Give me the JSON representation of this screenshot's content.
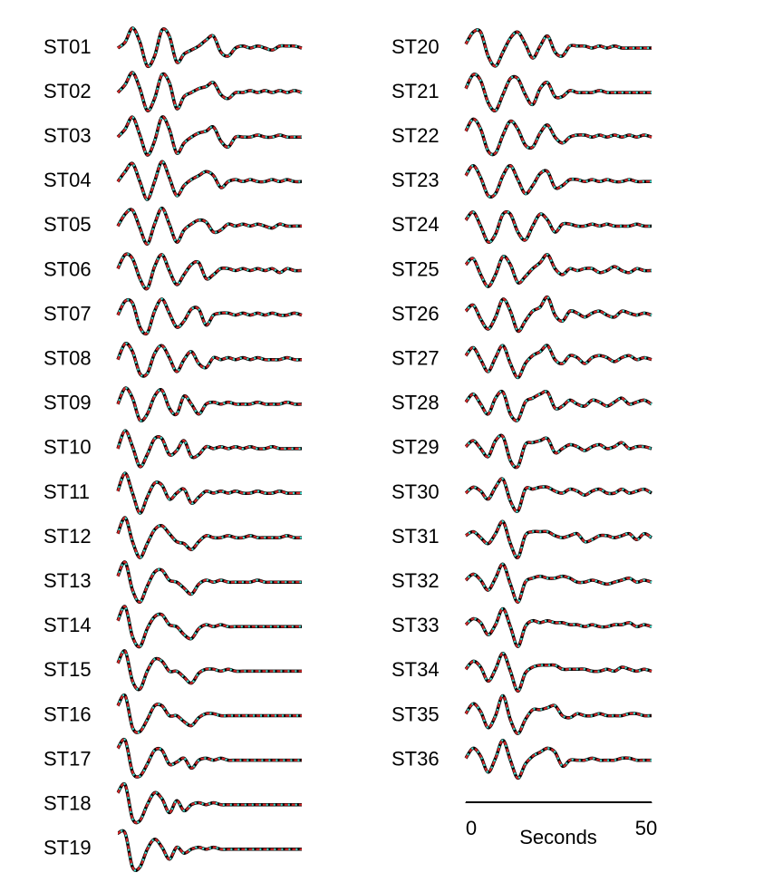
{
  "chart_data": {
    "type": "line",
    "x": [
      0,
      2,
      4,
      6,
      8,
      10,
      12,
      14,
      16,
      18,
      20,
      22,
      24,
      26,
      28,
      30,
      32,
      34,
      36,
      38,
      40,
      42,
      44,
      46,
      48,
      50
    ],
    "xlim": [
      0,
      50
    ],
    "xticks": [
      0,
      50
    ],
    "xlabel": "Seconds",
    "ylim": [
      -1,
      1
    ],
    "line_colors": [
      "#000000",
      "#d62728",
      "#40e0d0"
    ],
    "series": [
      {
        "name": "ST01",
        "values": [
          0,
          0.3,
          1,
          0.3,
          -0.9,
          -0.4,
          0.9,
          0.6,
          -0.7,
          -0.3,
          -0.1,
          0.1,
          0.4,
          0.6,
          -0.2,
          -0.4,
          0,
          0.1,
          0,
          0.1,
          0,
          -0.1,
          0.1,
          0.1,
          0.1,
          0
        ]
      },
      {
        "name": "ST02",
        "values": [
          0,
          0.4,
          1,
          0.2,
          -0.9,
          -0.3,
          0.9,
          0.5,
          -0.8,
          -0.2,
          0,
          0.2,
          0.3,
          0.5,
          -0.1,
          -0.3,
          0,
          0,
          0.1,
          0,
          0.1,
          0,
          0.1,
          0,
          0.1,
          0
        ]
      },
      {
        "name": "ST03",
        "values": [
          0,
          0.4,
          1,
          0.1,
          -0.9,
          -0.2,
          1,
          0.4,
          -0.8,
          -0.3,
          0,
          0.2,
          0.3,
          0.5,
          -0.2,
          -0.5,
          0,
          0,
          0,
          0.1,
          0,
          0,
          0.1,
          0,
          0,
          0
        ]
      },
      {
        "name": "ST04",
        "values": [
          0,
          0.5,
          0.9,
          0,
          -0.9,
          0,
          1,
          0.2,
          -0.7,
          -0.2,
          0.1,
          0.3,
          0.5,
          0.3,
          -0.3,
          0,
          0.1,
          0,
          0.1,
          0,
          0,
          0.1,
          0,
          0.1,
          0,
          0
        ]
      },
      {
        "name": "ST05",
        "values": [
          0,
          0.6,
          0.8,
          -0.1,
          -0.9,
          0.1,
          0.9,
          0.1,
          -0.8,
          -0.2,
          0.1,
          0.3,
          0.2,
          -0.3,
          -0.2,
          0.1,
          0,
          0.1,
          0,
          0.1,
          0,
          -0.1,
          0.1,
          0,
          0,
          0
        ]
      },
      {
        "name": "ST06",
        "values": [
          0.1,
          0.8,
          0.6,
          -0.4,
          -0.9,
          0.2,
          0.8,
          0,
          -0.7,
          -0.2,
          0.3,
          0.4,
          -0.4,
          -0.2,
          0.1,
          0.1,
          0,
          0.1,
          0,
          0.1,
          0,
          0.1,
          -0.1,
          0.1,
          0,
          0
        ]
      },
      {
        "name": "ST07",
        "values": [
          0,
          0.7,
          0.6,
          -0.6,
          -0.9,
          0.2,
          0.8,
          0.1,
          -0.6,
          -0.3,
          0.3,
          0.3,
          -0.5,
          0,
          0.1,
          0.1,
          0,
          0.1,
          0,
          0.1,
          0,
          0.1,
          0,
          0,
          0.1,
          0
        ]
      },
      {
        "name": "ST08",
        "values": [
          0,
          0.8,
          0.4,
          -0.7,
          -0.7,
          0.3,
          0.7,
          0.1,
          -0.6,
          0,
          0.4,
          -0.2,
          -0.4,
          0.1,
          0,
          0.1,
          0,
          0.1,
          0,
          0.1,
          0,
          0,
          0,
          0.1,
          0,
          0
        ]
      },
      {
        "name": "ST09",
        "values": [
          0,
          0.8,
          0.3,
          -0.8,
          -0.5,
          0.4,
          0.7,
          -0.2,
          -0.5,
          0.4,
          0,
          -0.5,
          0,
          0.1,
          0,
          0.1,
          0,
          0,
          0,
          0.1,
          0,
          0,
          0,
          0.1,
          0,
          0
        ]
      },
      {
        "name": "ST10",
        "values": [
          0,
          0.9,
          0.1,
          -0.9,
          -0.3,
          0.5,
          0.5,
          -0.3,
          -0.1,
          0.4,
          -0.4,
          -0.3,
          0.1,
          0,
          0.1,
          0,
          0.1,
          0,
          0.1,
          0,
          0,
          0.1,
          0,
          0,
          0,
          0
        ]
      },
      {
        "name": "ST11",
        "values": [
          0.1,
          1,
          0,
          -1,
          -0.2,
          0.5,
          0.4,
          -0.3,
          0,
          0.2,
          -0.5,
          -0.2,
          0.1,
          0,
          0.1,
          0,
          0.1,
          0,
          0,
          0.1,
          0,
          0,
          0.1,
          0,
          0,
          0
        ]
      },
      {
        "name": "ST12",
        "values": [
          0.2,
          1,
          -0.2,
          -1,
          -0.3,
          0.4,
          0.6,
          0.2,
          -0.2,
          -0.3,
          -0.6,
          -0.2,
          0.1,
          0,
          0,
          0.1,
          0,
          0,
          0.1,
          0,
          0,
          0,
          0,
          0.1,
          0,
          0
        ]
      },
      {
        "name": "ST13",
        "values": [
          0.3,
          1,
          -0.4,
          -1,
          -0.2,
          0.5,
          0.6,
          0.1,
          0,
          -0.3,
          -0.6,
          -0.1,
          0.1,
          0,
          0.1,
          0,
          0,
          0,
          0,
          0.1,
          0,
          0,
          0,
          0,
          0,
          0
        ]
      },
      {
        "name": "ST14",
        "values": [
          0.3,
          1,
          -0.5,
          -1,
          -0.1,
          0.5,
          0.6,
          0.1,
          0,
          -0.4,
          -0.6,
          -0.1,
          0.1,
          0,
          0.1,
          0,
          0,
          0,
          0,
          0,
          0,
          0,
          0,
          0,
          0,
          0
        ]
      },
      {
        "name": "ST15",
        "values": [
          0.4,
          1,
          -0.5,
          -0.9,
          0,
          0.6,
          0.5,
          0,
          0,
          -0.3,
          -0.6,
          -0.1,
          0.1,
          0.1,
          0,
          0.1,
          0,
          0,
          0,
          0,
          0,
          0,
          0,
          0,
          0,
          0
        ]
      },
      {
        "name": "ST16",
        "values": [
          0.5,
          1,
          -0.6,
          -0.8,
          -0.2,
          0.5,
          0.5,
          0,
          0,
          -0.3,
          -0.5,
          -0.1,
          0.1,
          0.1,
          0,
          0,
          0,
          0,
          0,
          0,
          0,
          0,
          0,
          0,
          0,
          0
        ]
      },
      {
        "name": "ST17",
        "values": [
          0.6,
          1,
          -0.6,
          -0.8,
          -0.2,
          0.5,
          0.5,
          -0.2,
          -0.1,
          0.1,
          -0.4,
          0,
          0.1,
          0,
          0.1,
          0,
          0,
          0,
          0,
          0,
          0,
          0,
          0,
          0,
          0,
          0
        ]
      },
      {
        "name": "ST18",
        "values": [
          0.6,
          1,
          -0.7,
          -0.8,
          0,
          0.6,
          0.3,
          -0.4,
          0.2,
          -0.3,
          0,
          0.1,
          0,
          0.1,
          0,
          0,
          0,
          0,
          0,
          0,
          0,
          0,
          0,
          0,
          0,
          0
        ]
      },
      {
        "name": "ST19",
        "values": [
          0.8,
          0.8,
          -0.9,
          -0.9,
          0,
          0.5,
          0.1,
          -0.5,
          0.1,
          -0.2,
          0,
          0.1,
          0,
          0.1,
          0,
          0,
          0,
          0,
          0,
          0,
          0,
          0,
          0,
          0,
          0,
          0
        ]
      },
      {
        "name": "ST20",
        "values": [
          0.2,
          0.8,
          0.8,
          -0.4,
          -0.9,
          -0.2,
          0.5,
          0.8,
          0.2,
          -0.5,
          0.1,
          0.6,
          -0.2,
          -0.4,
          0.1,
          0.1,
          0.1,
          0,
          0.1,
          0,
          0.1,
          0,
          0,
          0,
          0,
          0
        ]
      },
      {
        "name": "ST21",
        "values": [
          0.2,
          0.9,
          0.6,
          -0.5,
          -0.9,
          -0.1,
          0.7,
          0.7,
          -0.1,
          -0.6,
          0.2,
          0.5,
          -0.2,
          -0.2,
          0.1,
          0,
          0,
          0,
          0.1,
          0,
          0,
          0,
          0,
          0,
          0,
          0
        ]
      },
      {
        "name": "ST22",
        "values": [
          0.3,
          0.9,
          0.4,
          -0.7,
          -0.8,
          0.1,
          0.8,
          0.4,
          -0.4,
          -0.5,
          0.2,
          0.6,
          0,
          -0.3,
          0,
          0.1,
          0.1,
          0,
          0.1,
          0,
          0.1,
          0,
          0.1,
          0,
          0.1,
          0
        ]
      },
      {
        "name": "ST23",
        "values": [
          0.3,
          0.8,
          0.2,
          -0.7,
          -0.6,
          0.3,
          0.8,
          0.1,
          -0.6,
          -0.2,
          0.4,
          0.5,
          -0.3,
          -0.2,
          0.1,
          0.1,
          0,
          0.1,
          0,
          0.1,
          0,
          0,
          0.1,
          0,
          0,
          0
        ]
      },
      {
        "name": "ST24",
        "values": [
          0.3,
          0.7,
          0,
          -0.8,
          -0.4,
          0.6,
          0.6,
          -0.3,
          -0.7,
          0,
          0.6,
          0.3,
          -0.3,
          0.1,
          0.1,
          0,
          0,
          0.1,
          0,
          0.1,
          0,
          0,
          0,
          0.1,
          0,
          0
        ]
      },
      {
        "name": "ST25",
        "values": [
          0.3,
          0.6,
          -0.2,
          -0.8,
          -0.2,
          0.7,
          0.3,
          -0.6,
          -0.3,
          0.1,
          0.4,
          0.8,
          0.1,
          -0.2,
          0.1,
          0,
          0.1,
          0.1,
          -0.1,
          0,
          0.2,
          0,
          -0.1,
          0.1,
          0,
          0
        ]
      },
      {
        "name": "ST26",
        "values": [
          0.2,
          0.5,
          -0.2,
          -0.7,
          -0.1,
          0.8,
          0.2,
          -0.8,
          -0.3,
          0.2,
          0.4,
          0.9,
          0,
          -0.3,
          0.2,
          0.1,
          -0.1,
          0.1,
          0.2,
          0,
          -0.1,
          0.2,
          0.1,
          0,
          0.1,
          0
        ]
      },
      {
        "name": "ST27",
        "values": [
          0.2,
          0.6,
          0,
          -0.6,
          0.1,
          0.7,
          -0.2,
          -0.9,
          -0.2,
          0.2,
          0.4,
          0.7,
          0,
          -0.2,
          0.2,
          0.1,
          -0.2,
          0.1,
          0.2,
          0.1,
          -0.1,
          0.1,
          0.2,
          0,
          0.1,
          0
        ]
      },
      {
        "name": "ST28",
        "values": [
          0.1,
          0.5,
          0,
          -0.5,
          0.3,
          0.6,
          -0.5,
          -0.8,
          0.1,
          0.3,
          0.5,
          0.6,
          -0.2,
          -0.1,
          0.2,
          0,
          -0.1,
          0.2,
          0.1,
          -0.1,
          0.1,
          0.3,
          0,
          0.1,
          0.2,
          0
        ]
      },
      {
        "name": "ST29",
        "values": [
          0.1,
          0.4,
          0,
          -0.4,
          0.4,
          0.6,
          -0.6,
          -0.9,
          0.2,
          0.3,
          0.4,
          0.5,
          -0.2,
          0,
          0.2,
          0.1,
          -0.1,
          0.1,
          0.2,
          0,
          0.1,
          0.3,
          0,
          0.1,
          0.1,
          0
        ]
      },
      {
        "name": "ST30",
        "values": [
          0,
          0.3,
          0.1,
          -0.3,
          0.3,
          0.7,
          -0.4,
          -0.9,
          0.2,
          0.2,
          0.3,
          0.3,
          0.1,
          0,
          0.2,
          0.1,
          -0.1,
          0.1,
          0.2,
          0,
          0,
          0.2,
          0,
          0.1,
          0.2,
          0
        ]
      },
      {
        "name": "ST31",
        "values": [
          0.1,
          0.3,
          0,
          -0.3,
          0.2,
          0.8,
          -0.3,
          -1,
          0.1,
          0.3,
          0.3,
          0.3,
          0.1,
          0,
          0.1,
          0.2,
          -0.2,
          -0.1,
          0.1,
          0.1,
          0,
          0.1,
          0.2,
          -0.1,
          0.2,
          0
        ]
      },
      {
        "name": "ST32",
        "values": [
          0.1,
          0.4,
          0.1,
          -0.4,
          0.2,
          0.9,
          -0.1,
          -1,
          0,
          0.2,
          0.3,
          0.2,
          0.2,
          0.3,
          0.2,
          0,
          0,
          0.1,
          0,
          -0.1,
          0,
          0.1,
          0.2,
          0,
          0.1,
          0
        ]
      },
      {
        "name": "ST33",
        "values": [
          0.1,
          0.4,
          0.2,
          -0.4,
          0.1,
          0.9,
          0,
          -1,
          0,
          0.3,
          0.2,
          0.3,
          0.2,
          0.2,
          0.1,
          0.1,
          0,
          0.1,
          0,
          0,
          0.1,
          0.1,
          0.2,
          0,
          0.1,
          0
        ]
      },
      {
        "name": "ST34",
        "values": [
          0.1,
          0.5,
          0.2,
          -0.5,
          0.1,
          0.9,
          0,
          -1,
          -0.1,
          0.2,
          0.3,
          0.3,
          0.3,
          0.1,
          0.1,
          0.1,
          0.1,
          0,
          0,
          0.1,
          0,
          0.2,
          0.1,
          0,
          0.1,
          0
        ]
      },
      {
        "name": "ST35",
        "values": [
          0.1,
          0.6,
          0.2,
          -0.6,
          0,
          1,
          -0.2,
          -0.9,
          -0.2,
          0.3,
          0.3,
          0.4,
          0.5,
          0,
          -0.1,
          0.1,
          0,
          0,
          0.1,
          0,
          0,
          0,
          0.1,
          0.1,
          0,
          0
        ]
      },
      {
        "name": "ST36",
        "values": [
          0.1,
          0.6,
          0.2,
          -0.6,
          0.1,
          1,
          0,
          -0.9,
          -0.2,
          0.2,
          0.4,
          0.6,
          0.4,
          -0.3,
          0,
          0,
          0,
          0.1,
          0,
          0,
          0,
          0.1,
          0.1,
          0,
          0,
          0
        ]
      }
    ]
  }
}
